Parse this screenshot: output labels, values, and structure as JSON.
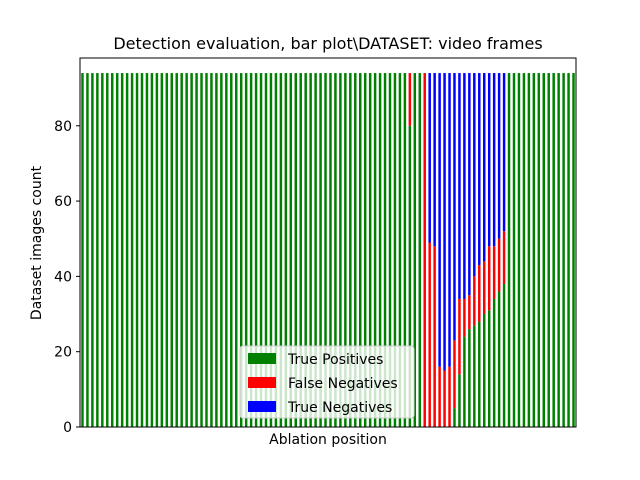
{
  "chart_data": {
    "type": "bar",
    "stacked": true,
    "title": "Detection evaluation, bar plot\\DATASET: video frames",
    "xlabel": "Ablation position",
    "ylabel": "Dataset images count",
    "ylim": [
      0,
      98
    ],
    "yticks": [
      "0",
      "20",
      "40",
      "60",
      "80"
    ],
    "total_per_bar": 94,
    "bar_count": 100,
    "legend_placement": "lower-center",
    "series": [
      {
        "name": "True Positives",
        "color": "#008000",
        "values": [
          94,
          94,
          94,
          94,
          94,
          94,
          94,
          94,
          94,
          94,
          94,
          94,
          94,
          94,
          94,
          94,
          94,
          94,
          94,
          94,
          94,
          94,
          94,
          94,
          94,
          94,
          94,
          94,
          94,
          94,
          94,
          94,
          94,
          94,
          94,
          94,
          94,
          94,
          94,
          94,
          94,
          94,
          94,
          94,
          94,
          94,
          94,
          94,
          94,
          94,
          94,
          94,
          94,
          94,
          94,
          94,
          94,
          94,
          94,
          94,
          94,
          94,
          94,
          94,
          94,
          94,
          80,
          94,
          94,
          0,
          0,
          0,
          0,
          0,
          0,
          5,
          14,
          24,
          26,
          27,
          28,
          30,
          31,
          34,
          36,
          38,
          94,
          94,
          94,
          94,
          94,
          94,
          94,
          94,
          94,
          94,
          94,
          94,
          94,
          94
        ]
      },
      {
        "name": "False Negatives",
        "color": "#ff0000",
        "values": [
          0,
          0,
          0,
          0,
          0,
          0,
          0,
          0,
          0,
          0,
          0,
          0,
          0,
          0,
          0,
          0,
          0,
          0,
          0,
          0,
          0,
          0,
          0,
          0,
          0,
          0,
          0,
          0,
          0,
          0,
          0,
          0,
          0,
          0,
          0,
          0,
          0,
          0,
          0,
          0,
          0,
          0,
          0,
          0,
          0,
          0,
          0,
          0,
          0,
          0,
          0,
          0,
          0,
          0,
          0,
          0,
          0,
          0,
          0,
          0,
          0,
          0,
          0,
          0,
          0,
          0,
          14,
          0,
          0,
          94,
          49,
          48,
          16,
          15,
          16,
          18,
          20,
          10,
          9,
          13,
          15,
          14,
          17,
          14,
          14,
          14,
          0,
          0,
          0,
          0,
          0,
          0,
          0,
          0,
          0,
          0,
          0,
          0,
          0,
          0
        ]
      },
      {
        "name": "True Negatives",
        "color": "#0000ff",
        "values": [
          0,
          0,
          0,
          0,
          0,
          0,
          0,
          0,
          0,
          0,
          0,
          0,
          0,
          0,
          0,
          0,
          0,
          0,
          0,
          0,
          0,
          0,
          0,
          0,
          0,
          0,
          0,
          0,
          0,
          0,
          0,
          0,
          0,
          0,
          0,
          0,
          0,
          0,
          0,
          0,
          0,
          0,
          0,
          0,
          0,
          0,
          0,
          0,
          0,
          0,
          0,
          0,
          0,
          0,
          0,
          0,
          0,
          0,
          0,
          0,
          0,
          0,
          0,
          0,
          0,
          0,
          0,
          0,
          0,
          0,
          45,
          46,
          78,
          79,
          78,
          71,
          60,
          60,
          59,
          54,
          51,
          50,
          46,
          46,
          44,
          42,
          0,
          0,
          0,
          0,
          0,
          0,
          0,
          0,
          0,
          0,
          0,
          0,
          0,
          0
        ]
      }
    ]
  }
}
